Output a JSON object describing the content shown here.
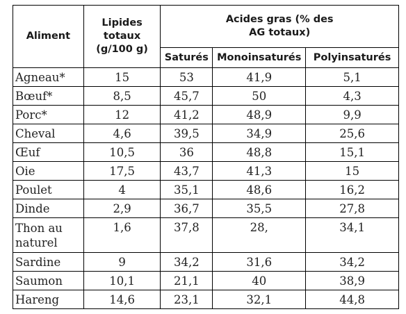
{
  "table": {
    "headers": {
      "food": "Aliment",
      "lipids": "Lipides totaux (g/100 g)",
      "fatty_acids": "Acides gras (% des AG totaux)",
      "saturated": "Saturés",
      "mono": "Monoinsaturés",
      "poly": "Polyinsaturés"
    },
    "rows": [
      {
        "food": "Agneau*",
        "lipids": "15",
        "sat": "53",
        "mono": "41,9",
        "poly": "5,1"
      },
      {
        "food": "Bœuf*",
        "lipids": "8,5",
        "sat": "45,7",
        "mono": "50",
        "poly": "4,3"
      },
      {
        "food": "Porc*",
        "lipids": "12",
        "sat": "41,2",
        "mono": "48,9",
        "poly": "9,9"
      },
      {
        "food": "Cheval",
        "lipids": "4,6",
        "sat": "39,5",
        "mono": "34,9",
        "poly": "25,6"
      },
      {
        "food": "Œuf",
        "lipids": "10,5",
        "sat": "36",
        "mono": "48,8",
        "poly": "15,1"
      },
      {
        "food": "Oie",
        "lipids": "17,5",
        "sat": "43,7",
        "mono": "41,3",
        "poly": "15"
      },
      {
        "food": "Poulet",
        "lipids": "4",
        "sat": "35,1",
        "mono": "48,6",
        "poly": "16,2"
      },
      {
        "food": "Dinde",
        "lipids": "2,9",
        "sat": "36,7",
        "mono": "35,5",
        "poly": "27,8"
      },
      {
        "food": "Thon au naturel",
        "lipids": "1,6",
        "sat": "37,8",
        "mono": "28,",
        "poly": "34,1"
      },
      {
        "food": "Sardine",
        "lipids": "9",
        "sat": "34,2",
        "mono": "31,6",
        "poly": "34,2"
      },
      {
        "food": "Saumon",
        "lipids": "10,1",
        "sat": "21,1",
        "mono": "40",
        "poly": "38,9"
      },
      {
        "food": "Hareng",
        "lipids": "14,6",
        "sat": "23,1",
        "mono": "32,1",
        "poly": "44,8"
      }
    ]
  }
}
